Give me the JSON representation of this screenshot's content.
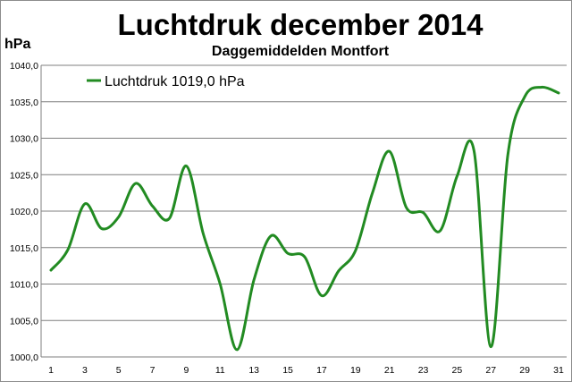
{
  "chart_data": {
    "type": "line",
    "title": "Luchtdruk december 2014",
    "subtitle": "Daggemiddelden Montfort",
    "ylabel": "hPa",
    "xlabel": "",
    "x": [
      1,
      2,
      3,
      4,
      5,
      6,
      7,
      8,
      9,
      10,
      11,
      12,
      13,
      14,
      15,
      16,
      17,
      18,
      19,
      20,
      21,
      22,
      23,
      24,
      25,
      26,
      27,
      28,
      29,
      30,
      31
    ],
    "x_tick_labels": [
      "1",
      "3",
      "5",
      "7",
      "9",
      "11",
      "13",
      "15",
      "17",
      "19",
      "21",
      "23",
      "25",
      "27",
      "29",
      "31"
    ],
    "y_tick_labels": [
      "1000,0",
      "1005,0",
      "1010,0",
      "1015,0",
      "1020,0",
      "1025,0",
      "1030,0",
      "1035,0",
      "1040,0"
    ],
    "ylim": [
      1000,
      1040
    ],
    "grid": "horizontal",
    "legend_position": "top-left",
    "series": [
      {
        "name": "Luchtdruk 1019,0 hPa",
        "color": "#228b22",
        "values": [
          1011.9,
          1014.7,
          1021.0,
          1017.6,
          1019.2,
          1023.8,
          1020.7,
          1019.0,
          1026.2,
          1016.9,
          1010.0,
          1001.0,
          1010.6,
          1016.6,
          1014.2,
          1013.7,
          1008.4,
          1011.8,
          1014.6,
          1022.5,
          1028.2,
          1020.5,
          1019.8,
          1017.3,
          1024.8,
          1028.3,
          1001.4,
          1027.7,
          1035.7,
          1037.0,
          1036.2
        ]
      }
    ]
  }
}
